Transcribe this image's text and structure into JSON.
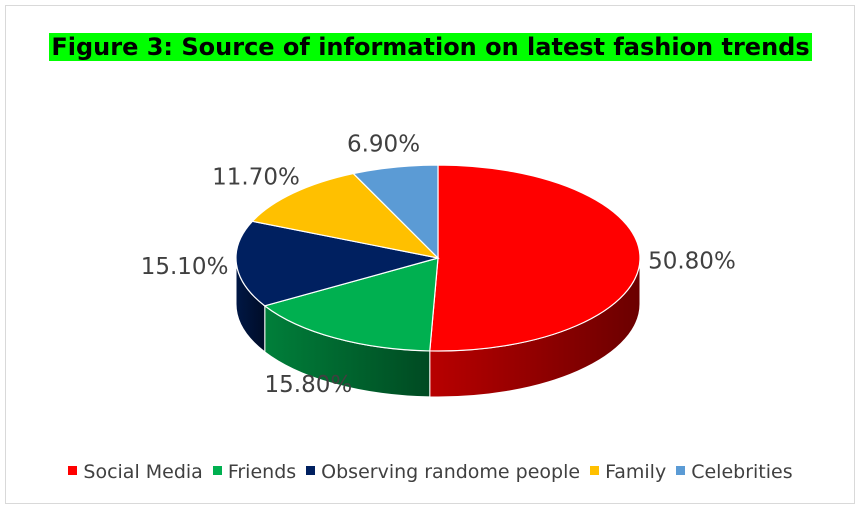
{
  "chart_data": {
    "type": "pie",
    "title": "Figure 3: Source of information on latest fashion trends",
    "title_highlight_color": "#00ff00",
    "categories": [
      "Social Media",
      "Friends",
      "Observing randome people",
      "Family",
      "Celebrities"
    ],
    "values": [
      50.8,
      15.8,
      15.1,
      11.7,
      6.9
    ],
    "data_labels": [
      "50.80%",
      "15.80%",
      "15.10%",
      "11.70%",
      "6.90%"
    ],
    "colors": [
      "#ff0000",
      "#00b050",
      "#002060",
      "#ffc000",
      "#5b9bd5"
    ],
    "legend_position": "bottom",
    "style": "3d"
  }
}
